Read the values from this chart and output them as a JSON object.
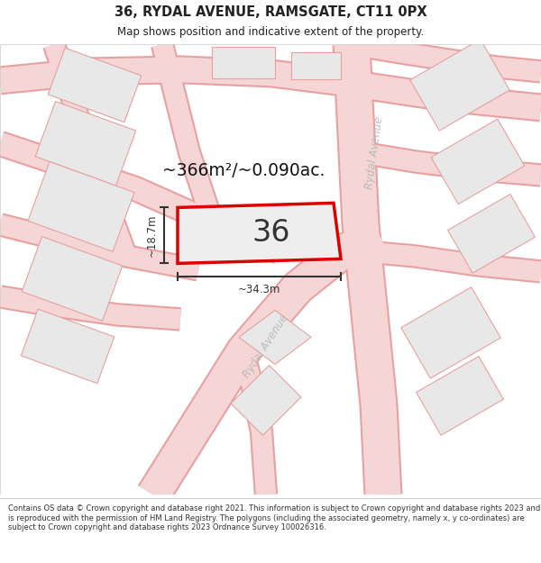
{
  "title_line1": "36, RYDAL AVENUE, RAMSGATE, CT11 0PX",
  "title_line2": "Map shows position and indicative extent of the property.",
  "footer_text": "Contains OS data © Crown copyright and database right 2021. This information is subject to Crown copyright and database rights 2023 and is reproduced with the permission of HM Land Registry. The polygons (including the associated geometry, namely x, y co-ordinates) are subject to Crown copyright and database rights 2023 Ordnance Survey 100026316.",
  "area_text": "~366m²/~0.090ac.",
  "number_label": "36",
  "width_label": "~34.3m",
  "height_label": "~18.7m",
  "road_label_right": "Rydal Avenue",
  "road_label_bottom": "Rydal Avenue",
  "highlight_color": "#dd0000",
  "building_fill": "#e8e8e8",
  "building_stroke": "#e8a0a0",
  "road_fill": "#f5d5d5",
  "road_edge": "#e8a0a0",
  "dim_color": "#333333",
  "text_color": "#222222",
  "plot_fill": "#eeeeee"
}
